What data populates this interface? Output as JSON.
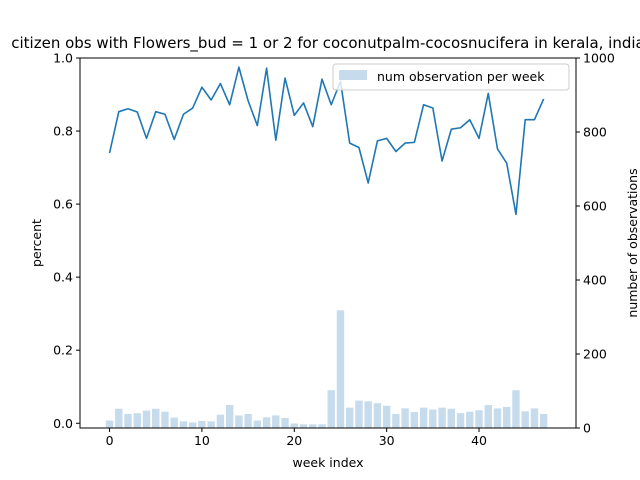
{
  "chart_data": {
    "type": "bar+line",
    "title": "citizen obs with Flowers_bud = 1 or 2 for coconutpalm-cocosnucifera in kerala, india",
    "xlabel": "week index",
    "ylabel_left": "percent",
    "ylabel_right": "number of observations",
    "xlim": [
      -3.2,
      50.5
    ],
    "ylim_left": [
      -0.013,
      1.0
    ],
    "ylim_right": [
      0,
      1000
    ],
    "xticks": [
      0,
      10,
      20,
      30,
      40
    ],
    "yticks_left": [
      0.0,
      0.2,
      0.4,
      0.6,
      0.8,
      1.0
    ],
    "yticks_right": [
      0,
      200,
      400,
      600,
      800,
      1000
    ],
    "ytick_labels_left": [
      "0.0",
      "0.2",
      "0.4",
      "0.6",
      "0.8",
      "1.0"
    ],
    "ytick_labels_right": [
      "0",
      "200",
      "400",
      "600",
      "800",
      "1000"
    ],
    "line_color": "#1f77b4",
    "bar_color": "#c6dbec",
    "legend": {
      "position": "upper right",
      "label": "num observation per week"
    },
    "weeks": [
      0,
      1,
      2,
      3,
      4,
      5,
      6,
      7,
      8,
      9,
      10,
      11,
      12,
      13,
      14,
      15,
      16,
      17,
      18,
      19,
      20,
      21,
      22,
      23,
      24,
      25,
      26,
      27,
      28,
      29,
      30,
      31,
      32,
      33,
      34,
      35,
      36,
      37,
      38,
      39,
      40,
      41,
      42,
      43,
      44,
      45,
      46,
      47
    ],
    "percent": [
      0.74,
      0.853,
      0.861,
      0.852,
      0.78,
      0.853,
      0.846,
      0.777,
      0.846,
      0.863,
      0.92,
      0.885,
      0.93,
      0.872,
      0.975,
      0.883,
      0.815,
      0.972,
      0.775,
      0.945,
      0.843,
      0.877,
      0.812,
      0.942,
      0.872,
      0.936,
      0.767,
      0.755,
      0.658,
      0.773,
      0.78,
      0.744,
      0.767,
      0.769,
      0.872,
      0.863,
      0.718,
      0.805,
      0.809,
      0.831,
      0.78,
      0.903,
      0.751,
      0.712,
      0.572,
      0.831,
      0.831,
      0.888
    ],
    "num_observations": [
      20,
      52,
      38,
      40,
      47,
      52,
      44,
      28,
      18,
      15,
      19,
      18,
      36,
      62,
      34,
      38,
      20,
      29,
      34,
      27,
      12,
      10,
      10,
      10,
      102,
      318,
      55,
      74,
      72,
      67,
      60,
      38,
      53,
      43,
      55,
      50,
      55,
      52,
      40,
      44,
      48,
      62,
      53,
      57,
      102,
      45,
      53,
      38
    ]
  }
}
